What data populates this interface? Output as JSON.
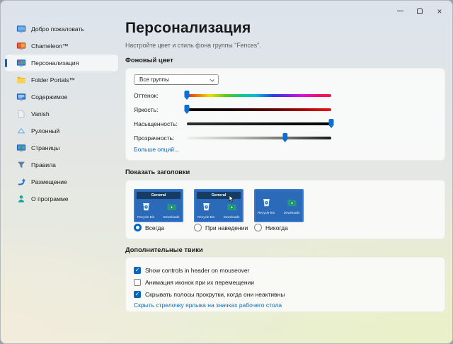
{
  "window": {
    "controls": [
      {
        "name": "minimize-icon"
      },
      {
        "name": "maximize-icon"
      },
      {
        "name": "close-icon"
      }
    ]
  },
  "sidebar": {
    "items": [
      {
        "label": "Добро пожаловать",
        "icon": "welcome-monitor-icon",
        "selected": false
      },
      {
        "label": "Chameleon™",
        "icon": "chameleon-monitor-icon",
        "selected": false
      },
      {
        "label": "Персонализация",
        "icon": "personalization-monitor-icon",
        "selected": true
      },
      {
        "label": "Folder Portals™",
        "icon": "folder-icon",
        "selected": false
      },
      {
        "label": "Содержимое",
        "icon": "content-monitor-icon",
        "selected": false
      },
      {
        "label": "Vanish",
        "icon": "vanish-page-icon",
        "selected": false
      },
      {
        "label": "Рулонный",
        "icon": "rollup-triangle-icon",
        "selected": false
      },
      {
        "label": "Страницы",
        "icon": "pages-monitor-icon",
        "selected": false
      },
      {
        "label": "Правила",
        "icon": "rules-funnel-icon",
        "selected": false
      },
      {
        "label": "Размещение",
        "icon": "placement-arrow-icon",
        "selected": false
      },
      {
        "label": "О программе",
        "icon": "about-person-icon",
        "selected": false
      }
    ]
  },
  "header": {
    "title": "Персонализация",
    "subtitle": "Настройте цвет и стиль фона группы \"Fences\"."
  },
  "background_color_section": {
    "label": "Фоновый цвет",
    "group_select": {
      "value": "Все группы"
    },
    "sliders": [
      {
        "label": "Оттенок:",
        "value_percent": 0,
        "track": "hue"
      },
      {
        "label": "Яркость:",
        "value_percent": 0,
        "track": "brightness"
      },
      {
        "label": "Насыщенность:",
        "value_percent": 100,
        "track": "saturation"
      },
      {
        "label": "Прозрачность:",
        "value_percent": 68,
        "track": "transparency"
      }
    ],
    "more_options_link": "Больше опций..."
  },
  "titles_section": {
    "label": "Показать заголовки",
    "previews": [
      {
        "header": "General",
        "icon_labels": [
          "Recycle Bin",
          "Downloads"
        ],
        "cursor": false
      },
      {
        "header": "General",
        "icon_labels": [
          "Recycle Bin",
          "Downloads"
        ],
        "cursor": true
      },
      {
        "header": "",
        "icon_labels": [
          "Recycle Bin",
          "Downloads"
        ],
        "cursor": false
      }
    ],
    "options": [
      {
        "label": "Всегда",
        "selected": true
      },
      {
        "label": "При наведении",
        "selected": false
      },
      {
        "label": "Никогда",
        "selected": false
      }
    ]
  },
  "tweaks_section": {
    "label": "Дополнительные твики",
    "checkboxes": [
      {
        "label": "Show controls in header on mouseover",
        "checked": true
      },
      {
        "label": "Анимация иконок при их перемещении",
        "checked": false
      },
      {
        "label": "Скрывать полосы прокрутки, когда они неактивны",
        "checked": true
      }
    ],
    "link": "Скрыть стрелочку ярлыка на значках рабочего стола"
  },
  "colors": {
    "accent": "#0067c0",
    "link": "#0b6cbd",
    "fence_blue": "#2b6ab8",
    "fence_header": "#173c63"
  }
}
